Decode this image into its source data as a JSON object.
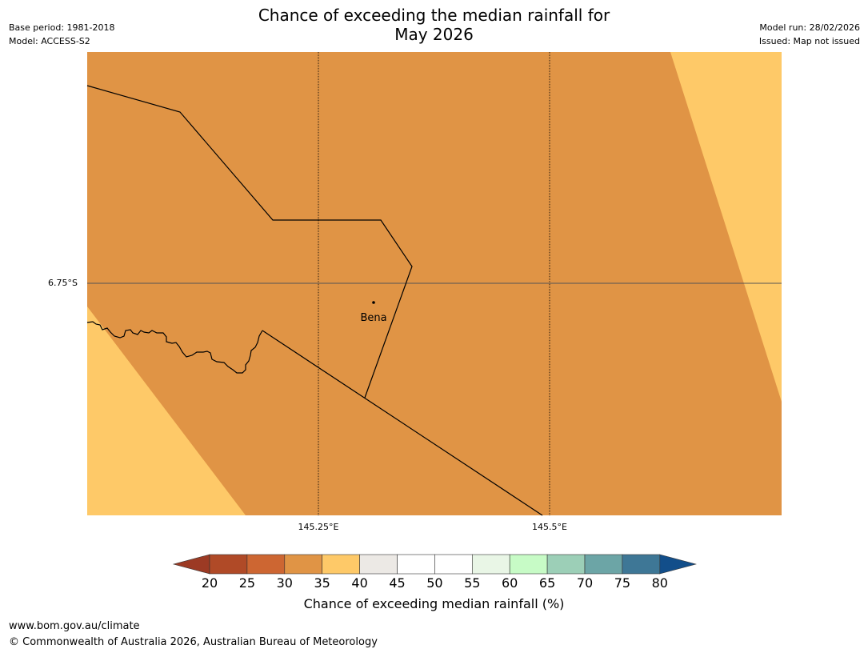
{
  "header": {
    "title_line1": "Chance of exceeding the median rainfall for",
    "title_line2": "May 2026",
    "base_period": "Base period: 1981-2018",
    "model": "Model: ACCESS-S2",
    "model_run": "Model run: 28/02/2026",
    "issued": "Issued: Map not issued"
  },
  "map": {
    "latitude_labels": [
      "6.75°S"
    ],
    "longitude_labels": [
      "145.25°E",
      "145.5°E"
    ],
    "town": {
      "name": "Bena"
    },
    "regions": [
      {
        "category": "30-35",
        "color": "#e09445"
      },
      {
        "category": "35-40",
        "color": "#fec968"
      }
    ]
  },
  "colorbar": {
    "ticks": [
      "20",
      "25",
      "30",
      "35",
      "40",
      "45",
      "50",
      "55",
      "60",
      "65",
      "70",
      "75",
      "80"
    ],
    "low_extend_color": "#9c3a24",
    "high_extend_color": "#124e8a",
    "colors": [
      "#b04a27",
      "#cd6632",
      "#e09445",
      "#fec968",
      "#ece9e5",
      "#ffffff",
      "#ffffff",
      "#e9f6e6",
      "#c7fbc6",
      "#9ccfb7",
      "#6ca5a6",
      "#3e7796"
    ],
    "label": "Chance of exceeding median rainfall (%)"
  },
  "footer": {
    "website": "www.bom.gov.au/climate",
    "copyright": "© Commonwealth of Australia 2026, Australian Bureau of Meteorology"
  }
}
